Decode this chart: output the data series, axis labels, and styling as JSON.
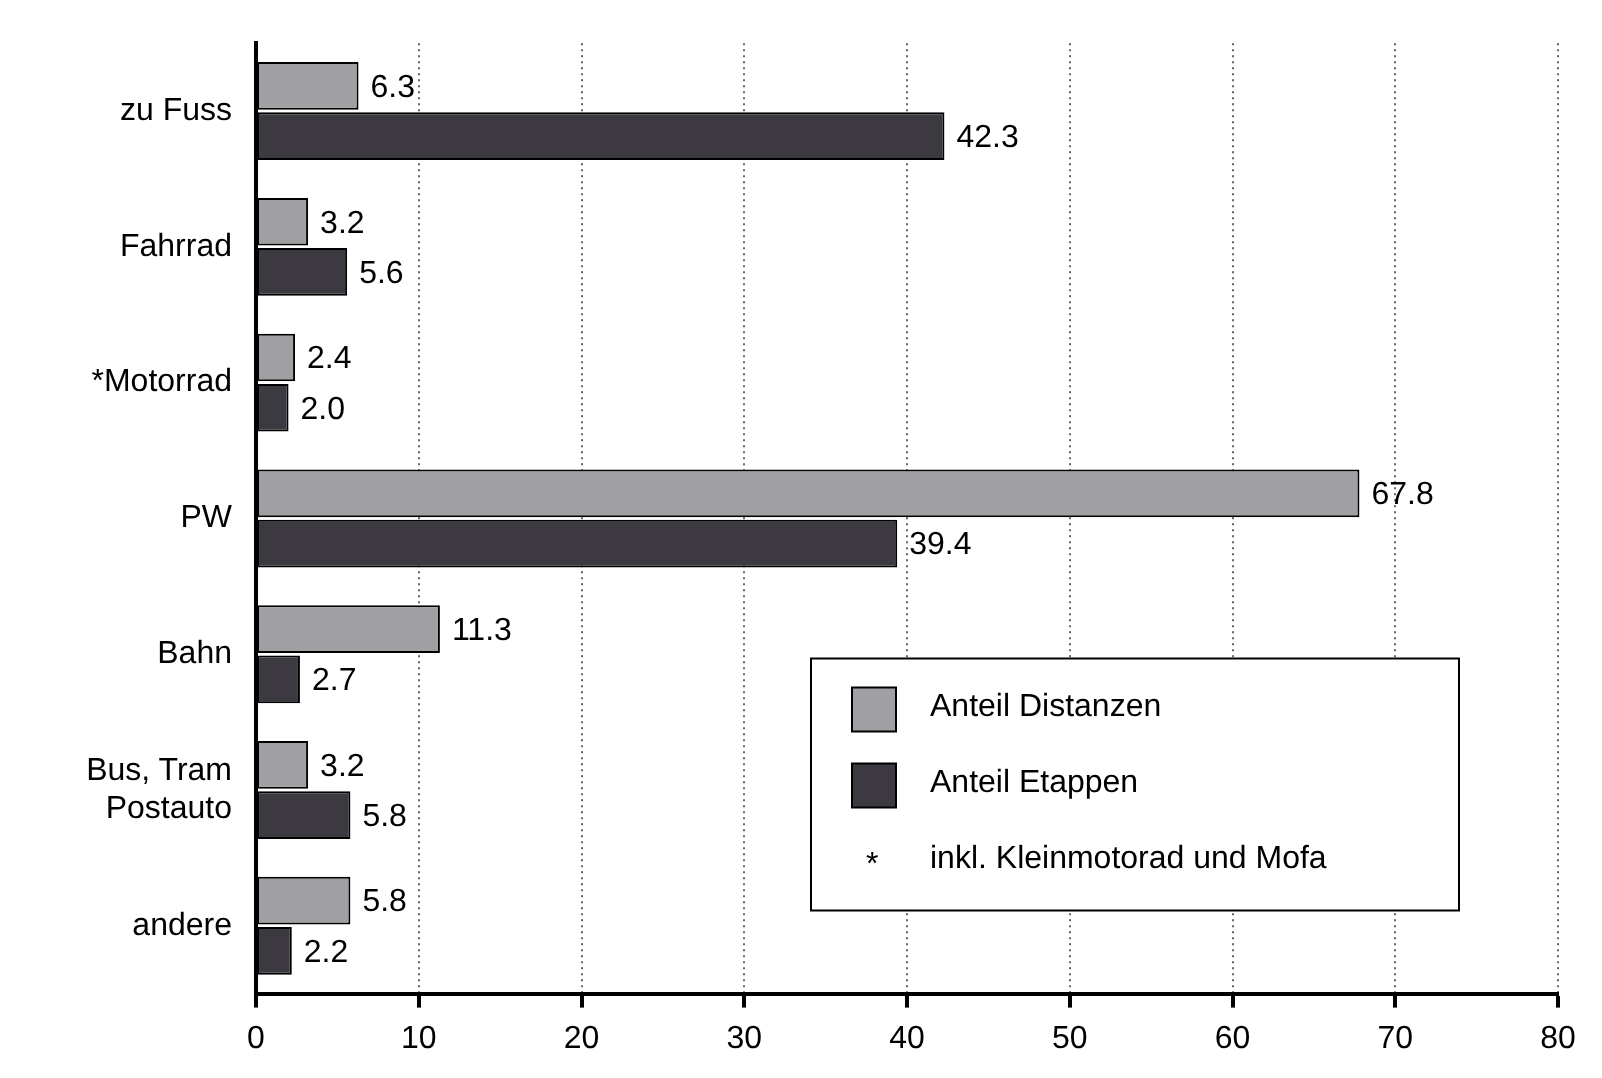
{
  "chart_data": {
    "type": "bar",
    "orientation": "horizontal",
    "categories": [
      "zu Fuss",
      "Fahrrad",
      "*Motorrad",
      "PW",
      "Bahn",
      "Bus, Tram\nPostauto",
      "andere"
    ],
    "series": [
      {
        "name": "Anteil Distanzen",
        "color": "#a0a0a4",
        "values": [
          6.3,
          3.2,
          2.4,
          67.8,
          11.3,
          3.2,
          5.8
        ],
        "value_labels": [
          "6.3",
          "3.2",
          "2.4",
          "67.8",
          "11.3",
          "3.2",
          "5.8"
        ]
      },
      {
        "name": "Anteil Etappen",
        "color": "#3c3a40",
        "values": [
          42.3,
          5.6,
          2.0,
          39.4,
          2.7,
          5.8,
          2.2
        ],
        "value_labels": [
          "42.3",
          "5.6",
          "2.0",
          "39.4",
          "2.7",
          "5.8",
          "2.2"
        ]
      }
    ],
    "xlim": [
      0,
      80
    ],
    "xticks": [
      0,
      10,
      20,
      30,
      40,
      50,
      60,
      70,
      80
    ],
    "grid": "x",
    "legend": "bottom right",
    "annotations": [
      "* inkl. Kleinmotorad und Mofa"
    ]
  }
}
